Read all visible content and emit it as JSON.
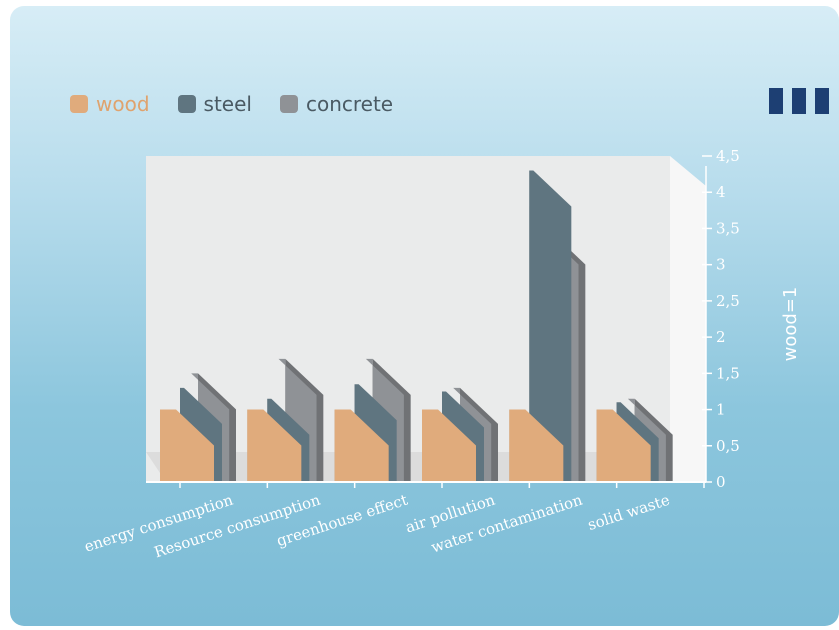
{
  "chart_data": {
    "type": "bar",
    "categories": [
      "energy consumption",
      "Resource consumption",
      "greenhouse effect",
      "air pollution",
      "water contamination",
      "solid waste"
    ],
    "series": [
      {
        "name": "wood",
        "values": [
          1,
          1,
          1,
          1,
          1,
          1
        ]
      },
      {
        "name": "steel",
        "values": [
          1.3,
          1.15,
          1.35,
          1.25,
          4.3,
          1.1
        ]
      },
      {
        "name": "concrete",
        "values": [
          1.5,
          1.7,
          1.7,
          1.3,
          3.5,
          1.15
        ]
      }
    ],
    "ylabel": "wood=1",
    "yticks": [
      "0",
      "0,5",
      "1",
      "1,5",
      "2",
      "2,5",
      "3",
      "3,5",
      "4",
      "4,5"
    ],
    "ylim": [
      0,
      4.5
    ],
    "legend_position": "top-left",
    "grid": false,
    "colors": {
      "wood": "#e0ab7c",
      "steel": "#5f7580",
      "concrete": "#8f9296"
    }
  },
  "legend": {
    "items": [
      {
        "label": "wood",
        "color": "#e0ab7c"
      },
      {
        "label": "steel",
        "color": "#5f7580"
      },
      {
        "label": "concrete",
        "color": "#8f9296"
      }
    ]
  },
  "icons": {
    "menu": "three-bars-icon"
  }
}
